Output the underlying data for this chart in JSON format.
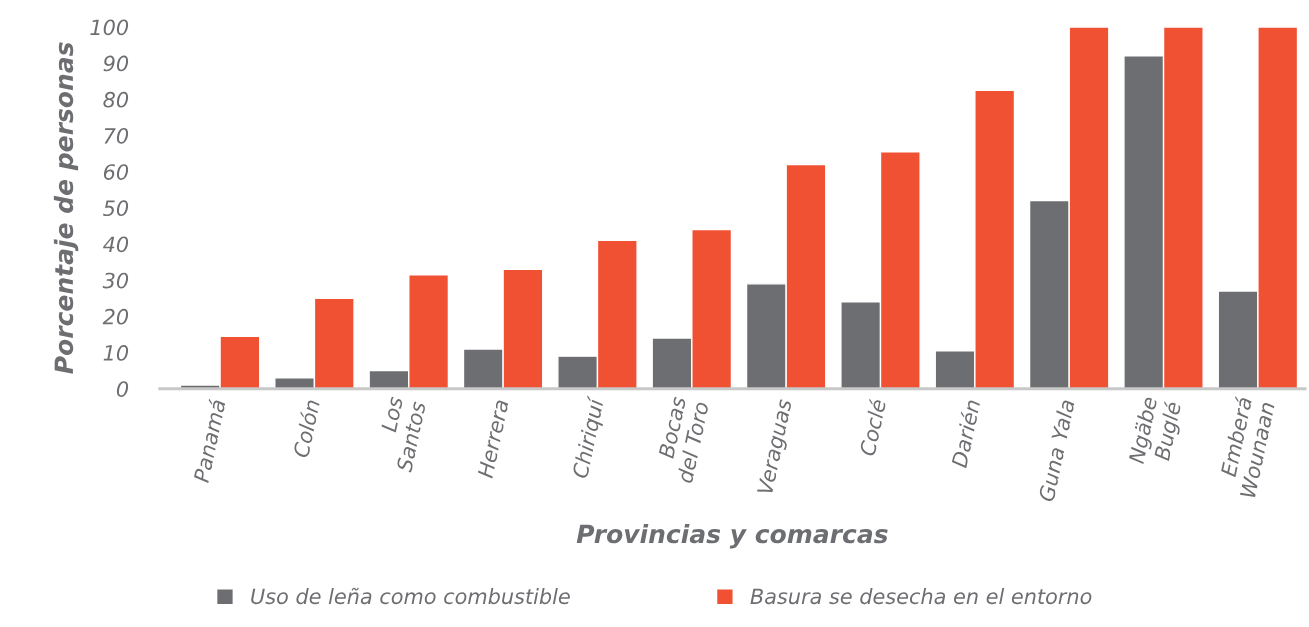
{
  "chart_data": {
    "type": "bar",
    "xlabel": "Provincias y comarcas",
    "ylabel": "Porcentaje de personas",
    "categories": [
      "Panamá",
      "Colón",
      "Los\nSantos",
      "Herrera",
      "Chiriquí",
      "Bocas\ndel Toro",
      "Veraguas",
      "Coclé",
      "Darién",
      "Guna Yala",
      "Ngäbe\nBuglé",
      "Emberá\nWounaan"
    ],
    "series": [
      {
        "name": "Uso de leña como combustible",
        "color": "#6d6e71",
        "values": [
          1,
          3,
          5,
          11,
          9,
          14,
          29,
          24,
          10.5,
          52,
          92,
          27
        ]
      },
      {
        "name": "Basura se desecha en el entorno",
        "color": "#f05133",
        "values": [
          14.5,
          25,
          31.5,
          33,
          41,
          44,
          62,
          65.5,
          82.5,
          100,
          100,
          100
        ]
      }
    ],
    "ylim": [
      0,
      100
    ],
    "yticks": [
      0,
      10,
      20,
      30,
      40,
      50,
      60,
      70,
      80,
      90,
      100
    ],
    "grid": false,
    "legend": "bottom"
  }
}
